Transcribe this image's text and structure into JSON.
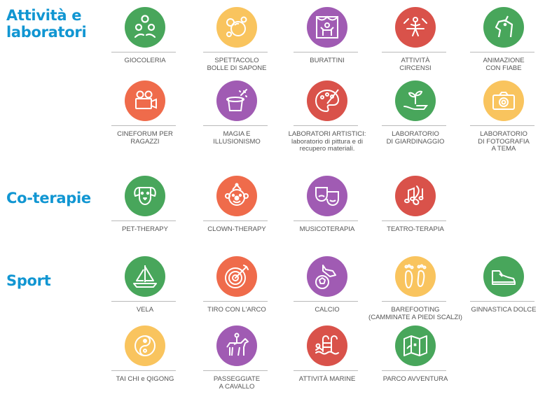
{
  "sections": [
    {
      "title_line1": "Attività e",
      "title_line2": "laboratori"
    },
    {
      "title": "Co-terapie"
    },
    {
      "title": "Sport"
    }
  ],
  "colors": {
    "title": "#1196d2",
    "green": "#48a65b",
    "yellow": "#f9c45e",
    "purple": "#a05bb3",
    "red": "#d9524a",
    "orange": "#ef6b4b",
    "label": "#555555",
    "rule": "#b9b9b9"
  },
  "activities": [
    {
      "label": "GIOCOLERIA",
      "icon": "juggling-icon"
    },
    {
      "label": "SPETTACOLO\nBOLLE DI SAPONE",
      "icon": "soap-bubbles-icon"
    },
    {
      "label": "BURATTINI",
      "icon": "puppet-theater-icon"
    },
    {
      "label": "ATTIVITÀ\nCIRCENSI",
      "icon": "circus-icon"
    },
    {
      "label": "ANIMAZIONE\nCON FIABE",
      "icon": "unicorn-icon"
    },
    {
      "label": "CINEFORUM PER\nRAGAZZI",
      "icon": "movie-camera-icon"
    },
    {
      "label": "MAGIA E\nILLUSIONISMO",
      "icon": "magic-hat-icon"
    },
    {
      "label": "LABORATORI ARTISTICI:\nlaboratorio di pittura e di\nrecupero materiali.",
      "icon": "palette-icon"
    },
    {
      "label": "LABORATORIO\nDI GIARDINAGGIO",
      "icon": "plant-hand-icon"
    },
    {
      "label": "LABORATORIO\nDI FOTOGRAFIA\nA TEMA",
      "icon": "camera-icon"
    }
  ],
  "coterapie": [
    {
      "label": "PET-THERAPY",
      "icon": "dog-icon"
    },
    {
      "label": "CLOWN-THERAPY",
      "icon": "clown-icon"
    },
    {
      "label": "MUSICOTERAPIA",
      "icon": "theater-masks-icon"
    },
    {
      "label": "TEATRO-TERAPIA",
      "icon": "music-notes-icon"
    }
  ],
  "sport": [
    {
      "label": "VELA",
      "icon": "sailboat-icon"
    },
    {
      "label": "TIRO CON L'ARCO",
      "icon": "archery-target-icon"
    },
    {
      "label": "CALCIO",
      "icon": "football-icon"
    },
    {
      "label": "BAREFOOTING\n(CAMMINATE A PIEDI SCALZI)",
      "icon": "footprints-icon"
    },
    {
      "label": "GINNASTICA DOLCE",
      "icon": "sneaker-icon"
    },
    {
      "label": "TAI CHI e QIGONG",
      "icon": "yin-yang-icon"
    },
    {
      "label": "PASSEGGIATE\nA CAVALLO",
      "icon": "horse-rider-icon"
    },
    {
      "label": "ATTIVITÀ MARINE",
      "icon": "pool-ladder-icon"
    },
    {
      "label": "PARCO AVVENTURA",
      "icon": "map-icon"
    }
  ]
}
